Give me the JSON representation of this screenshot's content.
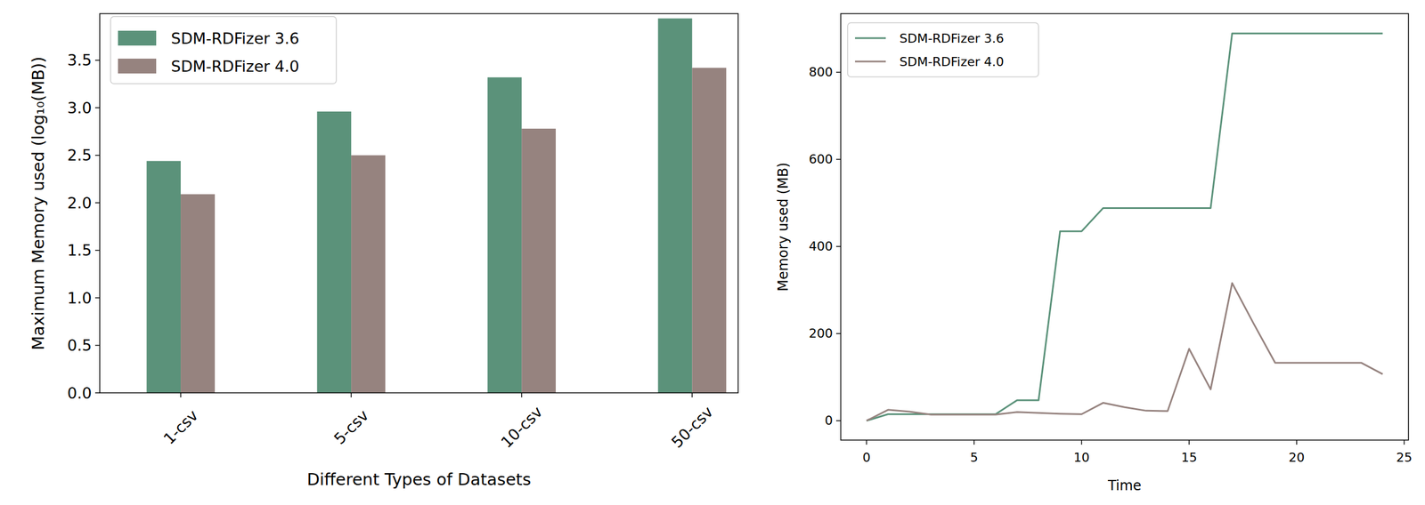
{
  "chart_data": [
    {
      "type": "bar",
      "x_label": "Different Types of Datasets",
      "y_label": "Maximum Memory used (log₁₀(MB))",
      "categories": [
        "1-csv",
        "5-csv",
        "10-csv",
        "50-csv"
      ],
      "series": [
        {
          "name": "SDM-RDFizer 3.6",
          "color": "#5b927a",
          "values": [
            2.44,
            2.96,
            3.32,
            3.94
          ]
        },
        {
          "name": "SDM-RDFizer 4.0",
          "color": "#96837f",
          "values": [
            2.09,
            2.5,
            2.78,
            3.42
          ]
        }
      ],
      "ylim": [
        0,
        3.99
      ],
      "yticks": [
        {
          "value": 0,
          "label": "0.0"
        },
        0.5,
        {
          "value": 1,
          "label": "1.0"
        },
        1.5,
        {
          "value": 2,
          "label": "2.0"
        },
        2.5,
        {
          "value": 3,
          "label": "3.0"
        },
        3.5
      ],
      "legend": "upper-left",
      "grid": false
    },
    {
      "type": "line",
      "x_label": "Time",
      "y_label": "Memory used (MB)",
      "x": [
        0,
        1,
        2,
        3,
        4,
        5,
        6,
        7,
        8,
        9,
        10,
        11,
        12,
        13,
        14,
        15,
        16,
        17,
        18,
        19,
        20,
        21,
        22,
        23,
        24
      ],
      "series": [
        {
          "name": "SDM-RDFizer 3.6",
          "color": "#5b927a",
          "values": [
            0,
            15,
            15,
            15,
            15,
            15,
            15,
            47,
            47,
            435,
            435,
            488,
            488,
            488,
            488,
            488,
            488,
            889,
            889,
            889,
            889,
            889,
            889,
            889,
            889
          ]
        },
        {
          "name": "SDM-RDFizer 4.0",
          "color": "#96837f",
          "values": [
            0,
            25,
            21,
            14,
            14,
            14,
            14,
            20,
            18,
            16,
            15,
            41,
            31,
            23,
            22,
            165,
            72,
            316,
            223,
            133,
            133,
            133,
            133,
            133,
            107
          ]
        }
      ],
      "xlim": [
        -1.2,
        25.2
      ],
      "ylim": [
        -44.5,
        934.5
      ],
      "xticks": [
        0,
        5,
        10,
        15,
        20,
        25
      ],
      "yticks": [
        0,
        200,
        400,
        600,
        800
      ],
      "legend": "upper-left",
      "grid": false
    }
  ]
}
